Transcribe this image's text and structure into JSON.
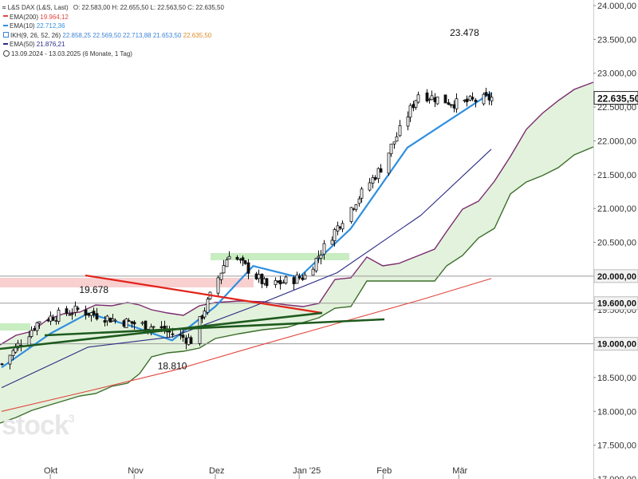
{
  "header": {
    "instrument": "L&S DAX (L&S, Last)",
    "ohlc": "O: 22.583,00   H: 22.655,50   L: 22.563,50   C: 22.635,50",
    "indicators": [
      {
        "label": "EMA(200)",
        "value": "19.964,12",
        "color": "#e0463e",
        "kind": "line"
      },
      {
        "label": "EMA(10)",
        "value": "22.712,36",
        "color": "#2f8fe0",
        "kind": "line"
      },
      {
        "label": "IKH(9, 26, 52, 26)",
        "value": "22.858,25   22.569,50   22.713,88   21.653,50",
        "value_extra": "22.635,50",
        "color": "#3d84d6",
        "kind": "square"
      },
      {
        "label": "EMA(50)",
        "value": "21.876,21",
        "color": "#2b2b85",
        "kind": "line"
      }
    ],
    "period": "13.09.2024 - 13.03.2025   (6 Monate, 1 Tag)"
  },
  "watermark": {
    "text": "stock",
    "mark": "3"
  },
  "chart_data": {
    "type": "line",
    "title": "L&S DAX (L&S, Last)",
    "y_axis": {
      "position": "right",
      "range": [
        17000,
        24000
      ],
      "ticks": [
        "17.000,00",
        "17.500,00",
        "18.000,00",
        "18.500,00",
        "19.000,00",
        "19.500,00",
        "20.000,00",
        "20.500,00",
        "21.000,00",
        "21.500,00",
        "22.000,00",
        "22.500,00",
        "23.000,00",
        "23.500,00",
        "24.000,00"
      ]
    },
    "x_axis": {
      "range": [
        "2024-09-13",
        "2025-03-13"
      ],
      "month_labels": [
        {
          "label": "Okt",
          "date": "2024-10-01"
        },
        {
          "label": "Nov",
          "date": "2024-11-01"
        },
        {
          "label": "Dez",
          "date": "2024-12-01"
        },
        {
          "label": "Jan '25",
          "date": "2025-01-01"
        },
        {
          "label": "Feb",
          "date": "2025-02-01"
        },
        {
          "label": "Mär",
          "date": "2025-03-01"
        }
      ]
    },
    "grid": false,
    "highlighted_levels": [
      {
        "value": 20000,
        "label": "20.000,00"
      },
      {
        "value": 19600,
        "label": "19.600,00"
      },
      {
        "value": 19000,
        "label": "19.000,00"
      }
    ],
    "last_price": {
      "value": 22635.5,
      "label": "22.635,50"
    },
    "annotations": [
      {
        "text": "19.678",
        "date": "2024-10-17",
        "y": 19678
      },
      {
        "text": "18.810",
        "date": "2024-11-15",
        "y": 18810
      },
      {
        "text": "23.478",
        "date": "2025-03-03",
        "y": 23478
      }
    ],
    "series": [
      {
        "name": "L&S DAX",
        "style": "candles",
        "x": [
          "2024-09-13",
          "2024-09-27",
          "2024-10-11",
          "2024-10-25",
          "2024-11-08",
          "2024-11-22",
          "2024-12-06",
          "2024-12-20",
          "2025-01-03",
          "2025-01-17",
          "2025-01-31",
          "2025-02-14",
          "2025-02-28",
          "2025-03-13"
        ],
        "y": [
          18700,
          19350,
          19500,
          19350,
          19250,
          19050,
          20350,
          19850,
          20000,
          20850,
          21600,
          22700,
          22550,
          22635
        ]
      },
      {
        "name": "EMA(10)",
        "style": "line",
        "color": "#2f8fe0",
        "x": [
          "2024-09-13",
          "2024-10-01",
          "2024-10-15",
          "2024-11-01",
          "2024-11-15",
          "2024-12-01",
          "2024-12-15",
          "2025-01-01",
          "2025-01-20",
          "2025-02-10",
          "2025-03-13"
        ],
        "y": [
          18650,
          19150,
          19450,
          19250,
          19050,
          19550,
          20150,
          19980,
          20700,
          21900,
          22712
        ]
      },
      {
        "name": "EMA(50)",
        "style": "line",
        "color": "#2b2b85",
        "x": [
          "2024-09-13",
          "2024-10-15",
          "2024-11-15",
          "2024-12-15",
          "2025-01-15",
          "2025-02-15",
          "2025-03-13"
        ],
        "y": [
          18350,
          18950,
          19100,
          19550,
          20050,
          20900,
          21876
        ]
      },
      {
        "name": "EMA(200)",
        "style": "line",
        "color": "#e0463e",
        "x": [
          "2024-09-13",
          "2024-10-15",
          "2024-11-15",
          "2024-12-15",
          "2025-01-15",
          "2025-02-15",
          "2025-03-13"
        ],
        "y": [
          18000,
          18300,
          18600,
          18950,
          19300,
          19650,
          19964
        ]
      }
    ]
  }
}
